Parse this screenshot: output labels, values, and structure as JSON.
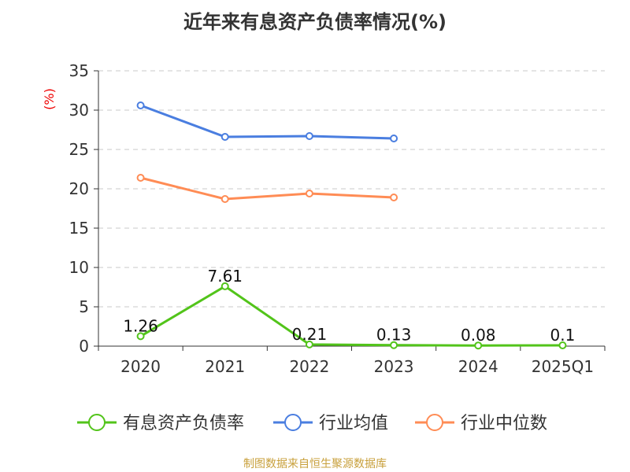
{
  "chart_data": {
    "type": "line",
    "title": "近年来有息资产负债率情况(%)",
    "ylabel": "(%)",
    "xlabel": "",
    "categories": [
      "2020",
      "2021",
      "2022",
      "2023",
      "2024",
      "2025Q1"
    ],
    "ylim": [
      0,
      35
    ],
    "yticks": [
      0,
      5,
      10,
      15,
      20,
      25,
      30,
      35
    ],
    "grid": true,
    "legend_position": "bottom",
    "series": [
      {
        "name": "有息资产负债率",
        "color": "#52c41a",
        "values": [
          1.26,
          7.61,
          0.21,
          0.13,
          0.08,
          0.1
        ],
        "labels": [
          "1.26",
          "7.61",
          "0.21",
          "0.13",
          "0.08",
          "0.1"
        ]
      },
      {
        "name": "行业均值",
        "color": "#4a7ee0",
        "values": [
          30.6,
          26.6,
          26.7,
          26.4,
          null,
          null
        ]
      },
      {
        "name": "行业中位数",
        "color": "#ff8c55",
        "values": [
          21.4,
          18.7,
          19.4,
          18.9,
          null,
          null
        ]
      }
    ]
  },
  "source": "制图数据来自恒生聚源数据库"
}
